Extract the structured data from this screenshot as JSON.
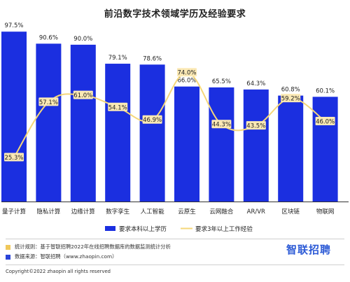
{
  "chart_data": {
    "type": "bar+line",
    "title": "前沿数字技术领域学历及经验要求",
    "categories": [
      "量子计算",
      "隐私计算",
      "边缘计算",
      "数字孪生",
      "人工智能",
      "云原生",
      "云网融合",
      "AR/VR",
      "区块链",
      "物联网"
    ],
    "series": [
      {
        "name": "要求本科以上学历",
        "kind": "bar",
        "values": [
          97.5,
          90.6,
          90.0,
          79.1,
          78.6,
          66.0,
          65.5,
          64.3,
          60.8,
          60.1
        ]
      },
      {
        "name": "要求3年以上工作经验",
        "kind": "line",
        "values": [
          25.3,
          57.1,
          61.0,
          54.1,
          46.9,
          74.0,
          44.3,
          43.5,
          59.2,
          46.0
        ]
      }
    ],
    "value_labels_bar": [
      "97.5%",
      "90.6%",
      "90.0%",
      "79.1%",
      "78.6%",
      "66.0%",
      "65.5%",
      "64.3%",
      "60.8%",
      "60.1%"
    ],
    "value_labels_line": [
      "25.3%",
      "57.1%",
      "61.0%",
      "54.1%",
      "46.9%",
      "74.0%",
      "44.3%",
      "43.5%",
      "59.2%",
      "46.0%"
    ],
    "ylim": [
      0,
      100
    ],
    "grid": false,
    "legend_placement": "bottom-center"
  },
  "colors": {
    "bar": "#1b2fe0",
    "line": "#f5d77a",
    "label_bg": "#fbe9b5",
    "text": "#222222"
  },
  "notes": {
    "stat_rule": "统计规则：基于智联招聘2022年在线招聘数据库的数据监测统计分析",
    "data_source": "数据来源：智联招聘（www.zhaopin.com）"
  },
  "brand": "智联招聘",
  "copyright": "Copyright©2022 zhaopin all rights reserved"
}
